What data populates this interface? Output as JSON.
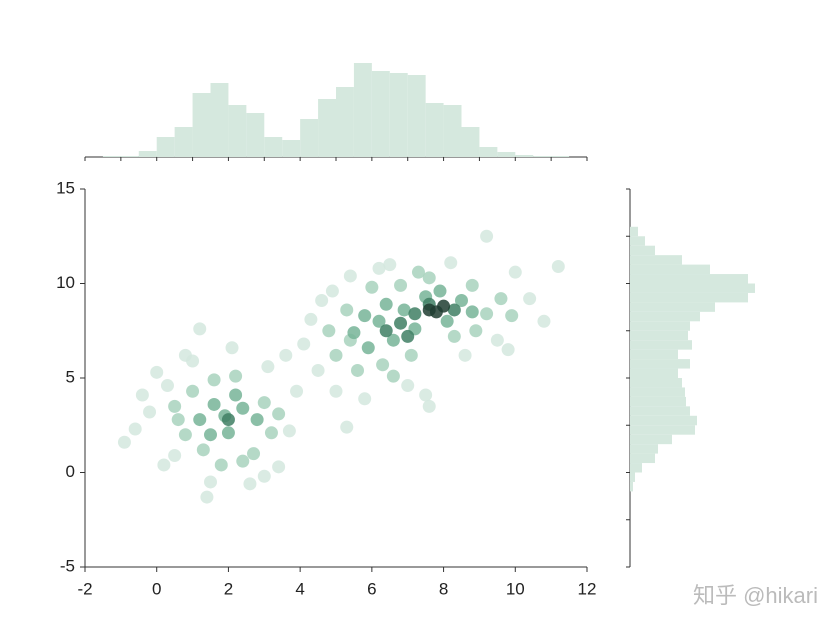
{
  "chart_data": [
    {
      "type": "scatter",
      "xlim": [
        -2,
        12
      ],
      "xticks": [
        -2,
        0,
        2,
        4,
        6,
        8,
        10,
        12
      ],
      "ylim": [
        -5,
        15
      ],
      "yticks": [
        -5,
        0,
        5,
        10,
        15
      ],
      "series": [
        {
          "color": "#d3e8de",
          "x": [
            -0.9,
            -0.6,
            -0.2,
            0,
            0.3,
            0.5,
            0.8,
            1.2,
            1.5,
            1.4,
            2.1,
            2.6,
            3.1,
            3.4,
            3.7,
            3.9,
            0.2,
            3,
            1,
            -0.4,
            4.1,
            4.3,
            4.5,
            4.9,
            5,
            5.4,
            5.8,
            6.5,
            7,
            7.5,
            8.2,
            8.6,
            9.2,
            9.5,
            10,
            10.4,
            11.2,
            10.8,
            6.2,
            7.6,
            5.3,
            9.8,
            4.6,
            3.6
          ],
          "values": [
            1.6,
            2.3,
            3.2,
            5.3,
            4.6,
            0.9,
            6.2,
            7.6,
            -0.5,
            -1.3,
            6.6,
            -0.6,
            5.6,
            0.3,
            2.2,
            4.3,
            0.4,
            -0.2,
            5.9,
            4.1,
            6.8,
            8.1,
            5.4,
            9.6,
            4.3,
            10.4,
            3.9,
            11,
            4.6,
            4.1,
            11.1,
            6.2,
            12.5,
            7,
            10.6,
            9.2,
            10.9,
            8,
            10.8,
            3.5,
            2.4,
            6.5,
            9.1,
            6.2
          ]
        },
        {
          "color": "#a8d2bd",
          "x": [
            0.5,
            0.8,
            1,
            1.3,
            1.6,
            2.2,
            2.7,
            3,
            3.2,
            2.4,
            0.6,
            1.8,
            3.4,
            4.8,
            5,
            5.3,
            5.6,
            6,
            6.3,
            6.8,
            7.1,
            7.6,
            8.3,
            8.8,
            9.2,
            9.6,
            9.9,
            5.4,
            6.6,
            8.9,
            7.3
          ],
          "values": [
            3.5,
            2,
            4.3,
            1.2,
            4.9,
            5.1,
            1,
            3.7,
            2.1,
            0.6,
            2.8,
            0.4,
            3.1,
            7.5,
            6.2,
            8.6,
            5.4,
            9.8,
            5.7,
            9.9,
            6.2,
            10.3,
            7.2,
            9.9,
            8.4,
            9.2,
            8.3,
            7,
            5.1,
            7.5,
            10.6
          ]
        },
        {
          "color": "#77b498",
          "x": [
            1.2,
            1.6,
            2,
            2.4,
            2.8,
            1.5,
            2.2,
            1.9,
            5.5,
            5.9,
            6.2,
            6.6,
            6.9,
            7.2,
            7.5,
            8.1,
            8.5,
            8.8,
            6.4,
            5.8,
            7.9
          ],
          "values": [
            2.8,
            3.6,
            2.1,
            3.4,
            2.8,
            2,
            4.1,
            3,
            7.4,
            6.6,
            8,
            7,
            8.6,
            7.6,
            9.3,
            8,
            9.1,
            8.5,
            8.9,
            8.3,
            9.6
          ]
        },
        {
          "color": "#3f7f64",
          "x": [
            2,
            6.4,
            6.8,
            7.2,
            7.6,
            8.3,
            7
          ],
          "values": [
            2.8,
            7.5,
            7.9,
            8.4,
            8.9,
            8.6,
            7.2
          ]
        },
        {
          "color": "#203d31",
          "x": [
            7.6,
            8,
            7.8
          ],
          "values": [
            8.6,
            8.8,
            8.5
          ]
        }
      ]
    },
    {
      "type": "histogram",
      "orientation": "vertical",
      "color": "#d5e8de",
      "xlim": [
        -2,
        12
      ],
      "xticks": [
        -2,
        -1,
        0,
        1,
        2,
        3,
        4,
        5,
        6,
        7,
        8,
        9,
        10,
        11,
        12
      ],
      "bins": [
        -1.5,
        -1,
        -0.5,
        0,
        0.5,
        1,
        1.5,
        2,
        2.5,
        3,
        3.5,
        4,
        4.5,
        5,
        5.5,
        6,
        6.5,
        7,
        7.5,
        8,
        8.5,
        9,
        9.5,
        10,
        10.5,
        11,
        11.5
      ],
      "values": [
        1,
        1,
        6,
        20,
        30,
        64,
        74,
        52,
        44,
        20,
        17,
        38,
        58,
        70,
        94,
        86,
        84,
        82,
        54,
        52,
        30,
        10,
        5,
        2,
        1,
        1
      ]
    },
    {
      "type": "histogram",
      "orientation": "horizontal",
      "color": "#d5e8de",
      "ylim": [
        -5,
        15
      ],
      "yticks": [
        -5,
        -2.5,
        0,
        2.5,
        5,
        7.5,
        10,
        12.5,
        15
      ],
      "bins": [
        -1,
        -0.5,
        0,
        0.5,
        1,
        1.5,
        2,
        2.5,
        3,
        3.5,
        4,
        4.5,
        5,
        5.5,
        6,
        6.5,
        7,
        7.5,
        8,
        8.5,
        9,
        9.5,
        10,
        10.5,
        11,
        11.5,
        12,
        12.5,
        13
      ],
      "values": [
        3,
        5,
        12,
        25,
        28,
        42,
        65,
        67,
        60,
        56,
        55,
        52,
        48,
        60,
        48,
        62,
        58,
        60,
        70,
        85,
        118,
        125,
        118,
        80,
        52,
        25,
        15,
        8
      ]
    }
  ],
  "watermark": "知乎 @hikari"
}
